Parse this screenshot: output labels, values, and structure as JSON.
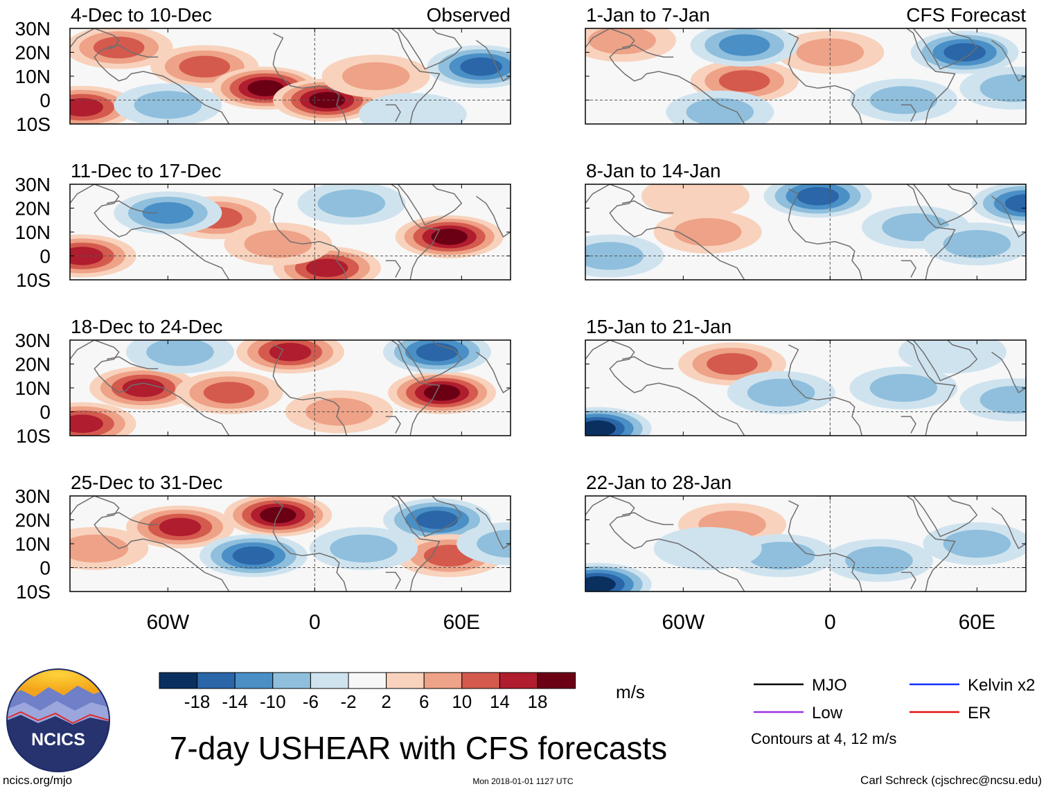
{
  "chart_data": {
    "type": "heatmap",
    "title": "7-day USHEAR with CFS forecasts",
    "variable": "USHEAR",
    "units_label": "m/s",
    "columns": {
      "observed_label": "Observed",
      "forecast_label": "CFS Forecast"
    },
    "x_axis": {
      "range": [
        -100,
        80
      ],
      "ticks": [
        {
          "value": -60,
          "label": "60W"
        },
        {
          "value": 0,
          "label": "0"
        },
        {
          "value": 60,
          "label": "60E"
        }
      ]
    },
    "y_axis": {
      "range": [
        -10,
        30
      ],
      "ticks": [
        {
          "value": 30,
          "label": "30N"
        },
        {
          "value": 20,
          "label": "20N"
        },
        {
          "value": 10,
          "label": "10N"
        },
        {
          "value": 0,
          "label": "0"
        },
        {
          "value": -10,
          "label": "10S"
        }
      ]
    },
    "colorbar": {
      "labels": [
        "-18",
        "-14",
        "-10",
        "-6",
        "-2",
        "2",
        "6",
        "10",
        "14",
        "18"
      ],
      "colors": [
        "#0a3060",
        "#2a66a8",
        "#4a8fc6",
        "#8fbfdc",
        "#cfe3ef",
        "#f7f7f7",
        "#f8d2bc",
        "#eea287",
        "#d45a4e",
        "#b01d2e",
        "#6b0015"
      ]
    },
    "contour_legend": [
      {
        "name": "MJO",
        "color": "#000000"
      },
      {
        "name": "Kelvin x2",
        "color": "#1030ff"
      },
      {
        "name": "Low",
        "color": "#9b30e0"
      },
      {
        "name": "ER",
        "color": "#e01010"
      }
    ],
    "contour_note": "Contours at 4, 12 m/s",
    "panels": [
      {
        "period": "4-Dec to 10-Dec",
        "kind": "observed",
        "anomalies": [
          {
            "lon": -80,
            "lat": 22,
            "value": 10
          },
          {
            "lon": -45,
            "lat": 14,
            "value": 12
          },
          {
            "lon": -20,
            "lat": 5,
            "value": 19
          },
          {
            "lon": 5,
            "lat": 0,
            "value": 19
          },
          {
            "lon": 25,
            "lat": 10,
            "value": 8
          },
          {
            "lon": -95,
            "lat": -3,
            "value": 15
          },
          {
            "lon": 68,
            "lat": 14,
            "value": -14
          },
          {
            "lon": -60,
            "lat": -2,
            "value": -6
          },
          {
            "lon": 40,
            "lat": -6,
            "value": -4
          }
        ]
      },
      {
        "period": "11-Dec to 17-Dec",
        "kind": "observed",
        "anomalies": [
          {
            "lon": -40,
            "lat": 16,
            "value": 12
          },
          {
            "lon": 5,
            "lat": -5,
            "value": 14
          },
          {
            "lon": 55,
            "lat": 8,
            "value": 18
          },
          {
            "lon": -95,
            "lat": 0,
            "value": 16
          },
          {
            "lon": -60,
            "lat": 18,
            "value": -12
          },
          {
            "lon": 15,
            "lat": 22,
            "value": -8
          },
          {
            "lon": -15,
            "lat": 5,
            "value": 6
          }
        ]
      },
      {
        "period": "18-Dec to 24-Dec",
        "kind": "observed",
        "anomalies": [
          {
            "lon": -70,
            "lat": 10,
            "value": 14
          },
          {
            "lon": -35,
            "lat": 8,
            "value": 12
          },
          {
            "lon": -10,
            "lat": 25,
            "value": 14
          },
          {
            "lon": 52,
            "lat": 8,
            "value": 19
          },
          {
            "lon": 50,
            "lat": 25,
            "value": -16
          },
          {
            "lon": -95,
            "lat": -5,
            "value": 15
          },
          {
            "lon": -55,
            "lat": 25,
            "value": -8
          },
          {
            "lon": 10,
            "lat": 0,
            "value": 8
          }
        ]
      },
      {
        "period": "25-Dec to 31-Dec",
        "kind": "observed",
        "anomalies": [
          {
            "lon": -55,
            "lat": 17,
            "value": 16
          },
          {
            "lon": -15,
            "lat": 22,
            "value": 18
          },
          {
            "lon": -25,
            "lat": 5,
            "value": -14
          },
          {
            "lon": 50,
            "lat": 20,
            "value": -16
          },
          {
            "lon": 55,
            "lat": 5,
            "value": 12
          },
          {
            "lon": 80,
            "lat": 10,
            "value": -6
          },
          {
            "lon": -90,
            "lat": 8,
            "value": 6
          },
          {
            "lon": 20,
            "lat": 8,
            "value": -6
          }
        ]
      },
      {
        "period": "1-Jan to 7-Jan",
        "kind": "forecast",
        "anomalies": [
          {
            "lon": -35,
            "lat": 8,
            "value": 10
          },
          {
            "lon": -85,
            "lat": 25,
            "value": 9
          },
          {
            "lon": 0,
            "lat": 20,
            "value": 6
          },
          {
            "lon": -35,
            "lat": 23,
            "value": -10
          },
          {
            "lon": 55,
            "lat": 20,
            "value": -16
          },
          {
            "lon": -45,
            "lat": -5,
            "value": -8
          },
          {
            "lon": 30,
            "lat": 0,
            "value": -8
          },
          {
            "lon": 75,
            "lat": 5,
            "value": -8
          }
        ]
      },
      {
        "period": "8-Jan to 14-Jan",
        "kind": "forecast",
        "anomalies": [
          {
            "lon": -5,
            "lat": 25,
            "value": -16
          },
          {
            "lon": 80,
            "lat": 22,
            "value": -16
          },
          {
            "lon": -55,
            "lat": 25,
            "value": 5
          },
          {
            "lon": -50,
            "lat": 10,
            "value": 6
          },
          {
            "lon": 35,
            "lat": 12,
            "value": -6
          },
          {
            "lon": -90,
            "lat": 0,
            "value": -6
          },
          {
            "lon": 60,
            "lat": 5,
            "value": -8
          }
        ]
      },
      {
        "period": "15-Jan to 21-Jan",
        "kind": "forecast",
        "anomalies": [
          {
            "lon": -40,
            "lat": 20,
            "value": 10
          },
          {
            "lon": -95,
            "lat": -7,
            "value": -18
          },
          {
            "lon": 30,
            "lat": 10,
            "value": -7
          },
          {
            "lon": 75,
            "lat": 5,
            "value": -8
          },
          {
            "lon": -20,
            "lat": 8,
            "value": -6
          },
          {
            "lon": 50,
            "lat": 25,
            "value": -4
          }
        ]
      },
      {
        "period": "22-Jan to 28-Jan",
        "kind": "forecast",
        "anomalies": [
          {
            "lon": -40,
            "lat": 18,
            "value": 6
          },
          {
            "lon": -95,
            "lat": -7,
            "value": -18
          },
          {
            "lon": -20,
            "lat": 5,
            "value": -9
          },
          {
            "lon": 20,
            "lat": 3,
            "value": -8
          },
          {
            "lon": 60,
            "lat": 10,
            "value": -6
          },
          {
            "lon": -50,
            "lat": 8,
            "value": -5
          }
        ]
      }
    ]
  },
  "logo": {
    "text": "NCICS"
  },
  "footer": {
    "url": "ncics.org/mjo",
    "timestamp": "Mon 2018-01-01 1127 UTC",
    "credit": "Carl Schreck (cjschrec@ncsu.edu)"
  }
}
